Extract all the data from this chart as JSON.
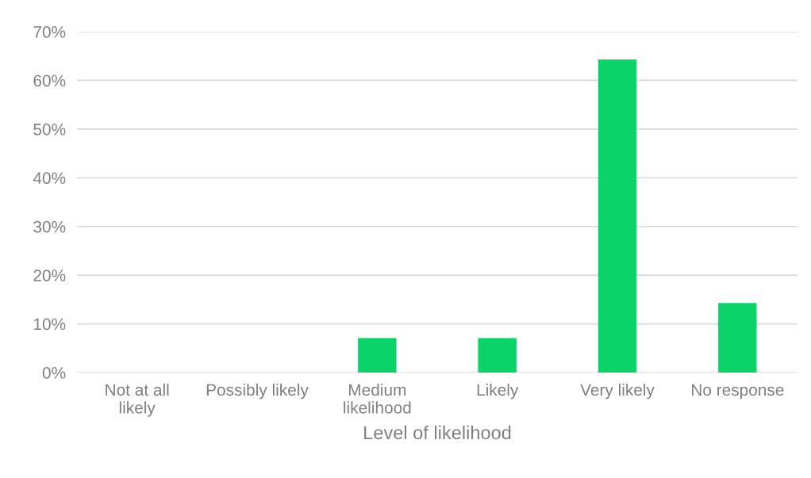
{
  "chart_data": {
    "type": "bar",
    "xlabel": "Level of likelihood",
    "categories": [
      "Not at all\nlikely",
      "Possibly likely",
      "Medium\nlikelihood",
      "Likely",
      "Very likely",
      "No response"
    ],
    "values": [
      0,
      0,
      7.1,
      7.1,
      64.3,
      14.3
    ],
    "color": "#0bd36a",
    "ylim": [
      0,
      70
    ],
    "yticks": [
      {
        "value": 0,
        "label": "0%"
      },
      {
        "value": 10,
        "label": "10%"
      },
      {
        "value": 20,
        "label": "20%"
      },
      {
        "value": 30,
        "label": "30%"
      },
      {
        "value": 40,
        "label": "40%"
      },
      {
        "value": 50,
        "label": "50%"
      },
      {
        "value": 60,
        "label": "60%"
      },
      {
        "value": 70,
        "label": "70%"
      }
    ],
    "grid": "y",
    "legend": false
  }
}
